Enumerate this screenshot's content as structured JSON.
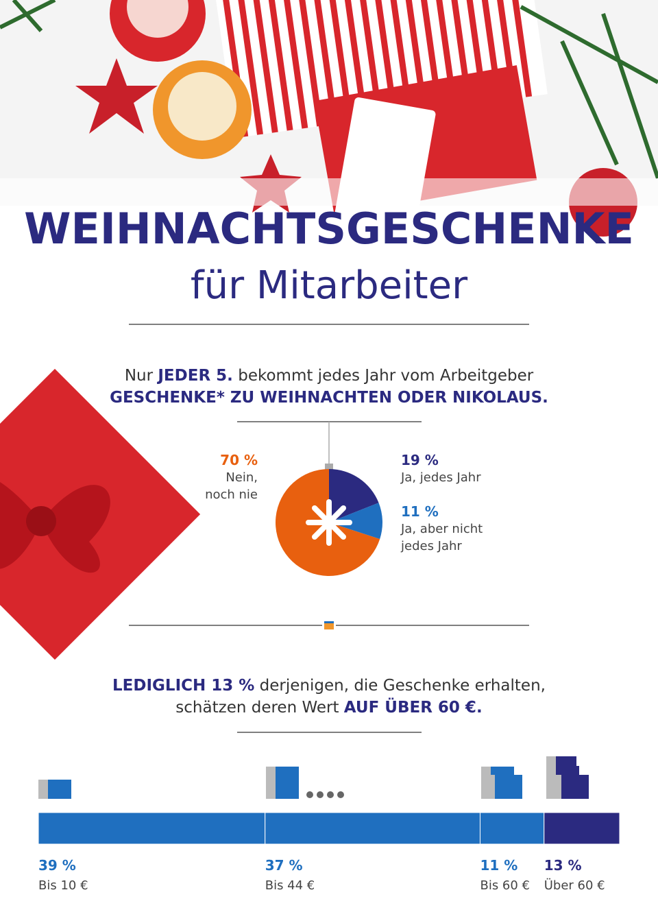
{
  "header": {
    "title": "WEIHNACHTSGESCHENKE",
    "subtitle": "für Mitarbeiter"
  },
  "section1": {
    "lines": [
      [
        {
          "text": "Nur ",
          "bold": false
        },
        {
          "text": "JEDER 5.",
          "bold": true
        },
        {
          "text": " bekommt jedes Jahr vom Arbeitgeber",
          "bold": false
        }
      ],
      [
        {
          "text": "GESCHENKE* ZU WEIHNACHTEN ODER NIKOLAUS.",
          "bold": true
        }
      ]
    ]
  },
  "section2": {
    "lines": [
      [
        {
          "text": "LEDIGLICH 13 %",
          "bold": true
        },
        {
          "text": " derjenigen, die Geschenke erhalten,",
          "bold": false
        }
      ],
      [
        {
          "text": "schätzen deren Wert ",
          "bold": false
        },
        {
          "text": "AUF ÜBER 60 €.",
          "bold": true
        }
      ]
    ]
  },
  "chart_data": [
    {
      "type": "pie",
      "categories": [
        "Ja, jedes Jahr",
        "Ja, aber nicht jedes Jahr",
        "Nein, noch nie"
      ],
      "values": [
        19,
        11,
        70
      ],
      "value_labels": [
        "19 %",
        "11 %",
        "70 %"
      ],
      "colors": [
        "#2b2a80",
        "#1f6fbf",
        "#e8600f"
      ]
    },
    {
      "type": "stacked-bar",
      "categories": [
        "Bis 10 €",
        "Bis 44 €",
        "Bis 60 €",
        "Über 60 €"
      ],
      "values": [
        39,
        37,
        11,
        13
      ],
      "value_labels": [
        "39 %",
        "37 %",
        "11 %",
        "13 %"
      ],
      "colors": [
        "#1f6fbf",
        "#1f6fbf",
        "#1f6fbf",
        "#2b2a80"
      ]
    }
  ]
}
